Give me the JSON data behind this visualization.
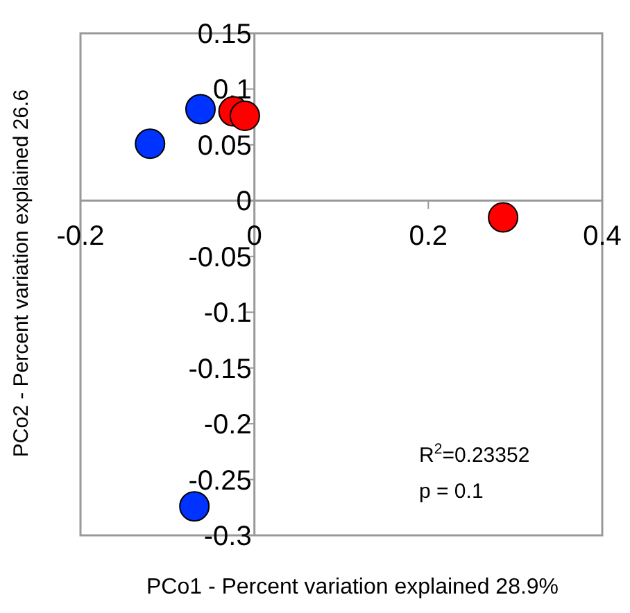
{
  "chart_data": {
    "type": "scatter",
    "xlabel": "PCo1 - Percent variation explained 28.9%",
    "ylabel": "PCo2 - Percent variation explained 26.6",
    "xlim": [
      -0.2,
      0.4
    ],
    "ylim": [
      -0.3,
      0.15
    ],
    "xticks": [
      -0.2,
      0,
      0.2,
      0.4
    ],
    "yticks": [
      -0.3,
      -0.25,
      -0.2,
      -0.15,
      -0.1,
      -0.05,
      0,
      0.05,
      0.1,
      0.15
    ],
    "grid": false,
    "marker": "circle",
    "series": [
      {
        "color": "#0033ff",
        "x": [
          -0.12,
          -0.062,
          -0.069
        ],
        "values": [
          0.051,
          0.082,
          -0.274
        ]
      },
      {
        "color": "#ff0000",
        "x": [
          -0.024,
          -0.011,
          0.286
        ],
        "values": [
          0.08,
          0.076,
          -0.015
        ]
      }
    ],
    "annotations": [
      "R$^{2}$=0.23352",
      "p = 0.1"
    ]
  }
}
